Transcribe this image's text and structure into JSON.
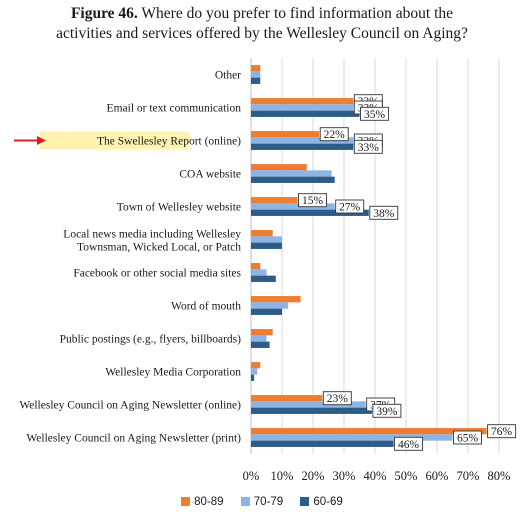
{
  "figure": {
    "number": "Figure 46.",
    "question_line1": "Where do you prefer to find information about the",
    "question_line2": "activities and services offered by the Wellesley Council on Aging?"
  },
  "chart_data": {
    "type": "bar",
    "orientation": "horizontal",
    "categories": [
      "Other",
      "Email or text communication",
      "The Swellesley Report (online)",
      "COA website",
      "Town of Wellesley website",
      "Local news media including Wellesley Townsman, Wicked Local, or Patch",
      "Facebook or other social media sites",
      "Word of mouth",
      "Public postings (e.g., flyers, billboards)",
      "Wellesley Media Corporation",
      "Wellesley Council on Aging Newsletter (online)",
      "Wellesley Council on Aging Newsletter (print)"
    ],
    "series": [
      {
        "name": "80-89",
        "color": "#ED7D31",
        "values": [
          3,
          33,
          22,
          18,
          15,
          7,
          3,
          16,
          7,
          3,
          23,
          76
        ]
      },
      {
        "name": "70-79",
        "color": "#8EB4E3",
        "values": [
          3,
          33,
          33,
          26,
          27,
          10,
          5,
          12,
          5,
          2,
          37,
          65
        ]
      },
      {
        "name": "60-69",
        "color": "#2E5C8A",
        "values": [
          3,
          35,
          33,
          27,
          38,
          10,
          8,
          10,
          6,
          1,
          39,
          46
        ]
      }
    ],
    "data_labels": [
      {
        "category_index": 1,
        "series_index": 0,
        "text": "33%"
      },
      {
        "category_index": 1,
        "series_index": 1,
        "text": "33%"
      },
      {
        "category_index": 1,
        "series_index": 2,
        "text": "35%"
      },
      {
        "category_index": 2,
        "series_index": 0,
        "text": "22%"
      },
      {
        "category_index": 2,
        "series_index": 1,
        "text": "33%"
      },
      {
        "category_index": 2,
        "series_index": 2,
        "text": "33%"
      },
      {
        "category_index": 4,
        "series_index": 0,
        "text": "15%"
      },
      {
        "category_index": 4,
        "series_index": 1,
        "text": "27%"
      },
      {
        "category_index": 4,
        "series_index": 2,
        "text": "38%"
      },
      {
        "category_index": 10,
        "series_index": 0,
        "text": "23%"
      },
      {
        "category_index": 10,
        "series_index": 1,
        "text": "37%"
      },
      {
        "category_index": 10,
        "series_index": 2,
        "text": "39%"
      },
      {
        "category_index": 11,
        "series_index": 0,
        "text": "76%"
      },
      {
        "category_index": 11,
        "series_index": 1,
        "text": "65%"
      },
      {
        "category_index": 11,
        "series_index": 2,
        "text": "46%"
      }
    ],
    "x_ticks": [
      "0%",
      "10%",
      "20%",
      "30%",
      "40%",
      "50%",
      "60%",
      "70%",
      "80%"
    ],
    "xlim": [
      0,
      80
    ],
    "grid": true,
    "legend_position": "bottom",
    "highlighted_category_index": 2,
    "highlight_color": "#FFF3B0",
    "arrow_color": "#D62020"
  }
}
